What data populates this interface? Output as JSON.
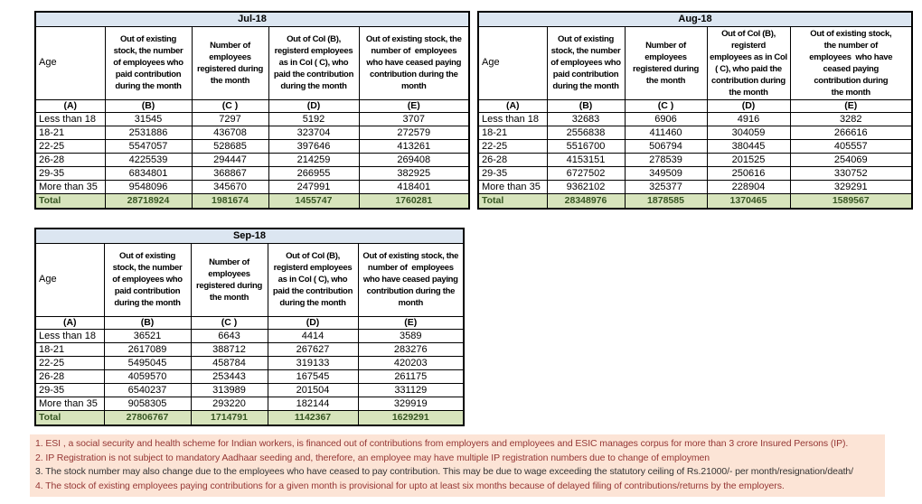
{
  "colors": {
    "table_border": "#000000",
    "month_header_bg": "#dce6f1",
    "total_row_bg": "#d7e4bc",
    "total_text": "#375623",
    "footnote_bg": "#fce4d6",
    "footnote_text_maroon": "#953735",
    "footnote_text_dark": "#333333"
  },
  "months": [
    {
      "title": "Jul-18",
      "headers": {
        "age": "Age",
        "b": "Out of existing\nstock, the number\nof employees who\npaid contribution\nduring the month",
        "c": "Number of\nemployees\nregistered during\nthe month",
        "d": "Out of Col (B),\nregisterd employees\nas in Col ( C), who\npaid the contribution\nduring the month",
        "e": "Out of existing stock, the\nnumber of  employees\nwho have ceased paying\ncontribution during the\nmonth"
      },
      "letters": [
        "(A)",
        "(B)",
        "(C )",
        "(D)",
        "(E)"
      ],
      "rows": [
        {
          "age": "Less than 18",
          "b": "31545",
          "c": "7297",
          "d": "5192",
          "e": "3707"
        },
        {
          "age": "18-21",
          "b": "2531886",
          "c": "436708",
          "d": "323704",
          "e": "272579"
        },
        {
          "age": "22-25",
          "b": "5547057",
          "c": "528685",
          "d": "397646",
          "e": "413261"
        },
        {
          "age": "26-28",
          "b": "4225539",
          "c": "294447",
          "d": "214259",
          "e": "269408"
        },
        {
          "age": "29-35",
          "b": "6834801",
          "c": "368867",
          "d": "266955",
          "e": "382925"
        },
        {
          "age": "More than 35",
          "b": "9548096",
          "c": "345670",
          "d": "247991",
          "e": "418401"
        }
      ],
      "total": {
        "label": "Total",
        "b": "28718924",
        "c": "1981674",
        "d": "1455747",
        "e": "1760281"
      }
    },
    {
      "title": "Aug-18",
      "headers": {
        "age": "Age",
        "b": "Out of existing\nstock, the number\nof employees who\npaid contribution\nduring the month",
        "c": "Number of\nemployees\nregistered during\nthe month",
        "d": "Out of Col (B),\nregisterd\nemployees as in Col\n( C), who paid the\ncontribution during\nthe month",
        "e": "Out of existing stock,\nthe number of\nemployees  who have\nceased paying\ncontribution during\nthe month"
      },
      "letters": [
        "(A)",
        "(B)",
        "(C )",
        "(D)",
        "(E)"
      ],
      "rows": [
        {
          "age": "Less than 18",
          "b": "32683",
          "c": "6906",
          "d": "4916",
          "e": "3282"
        },
        {
          "age": "18-21",
          "b": "2556838",
          "c": "411460",
          "d": "304059",
          "e": "266616"
        },
        {
          "age": "22-25",
          "b": "5516700",
          "c": "506794",
          "d": "380445",
          "e": "405557"
        },
        {
          "age": "26-28",
          "b": "4153151",
          "c": "278539",
          "d": "201525",
          "e": "254069"
        },
        {
          "age": "29-35",
          "b": "6727502",
          "c": "349509",
          "d": "250616",
          "e": "330752"
        },
        {
          "age": "More than 35",
          "b": "9362102",
          "c": "325377",
          "d": "228904",
          "e": "329291"
        }
      ],
      "total": {
        "label": "Total",
        "b": "28348976",
        "c": "1878585",
        "d": "1370465",
        "e": "1589567"
      }
    },
    {
      "title": "Sep-18",
      "headers": {
        "age": "Age",
        "b": "Out of existing\nstock, the number\nof employees who\npaid contribution\nduring the month",
        "c": "Number of\nemployees\nregistered during\nthe month",
        "d": "Out of Col (B),\nregisterd employees\nas in Col ( C), who\npaid the contribution\nduring the month",
        "e": "Out of existing stock, the\nnumber of  employees\nwho have ceased paying\ncontribution during the\nmonth"
      },
      "letters": [
        "(A)",
        "(B)",
        "(C )",
        "(D)",
        "(E)"
      ],
      "rows": [
        {
          "age": "Less than 18",
          "b": "36521",
          "c": "6643",
          "d": "4414",
          "e": "3589"
        },
        {
          "age": "18-21",
          "b": "2617089",
          "c": "388712",
          "d": "267627",
          "e": "283276"
        },
        {
          "age": "22-25",
          "b": "5495045",
          "c": "458784",
          "d": "319133",
          "e": "420203"
        },
        {
          "age": "26-28",
          "b": "4059570",
          "c": "253443",
          "d": "167545",
          "e": "261175"
        },
        {
          "age": "29-35",
          "b": "6540237",
          "c": "313989",
          "d": "201504",
          "e": "331129"
        },
        {
          "age": "More than 35",
          "b": "9058305",
          "c": "293220",
          "d": "182144",
          "e": "329919"
        }
      ],
      "total": {
        "label": "Total",
        "b": "27806767",
        "c": "1714791",
        "d": "1142367",
        "e": "1629291"
      }
    }
  ],
  "footnotes": [
    {
      "text": "1. ESI , a social security and health scheme for Indian workers, is financed out of contributions from employers and employees and ESIC manages corpus for more than 3 crore Insured Persons (IP)."
    },
    {
      "text": "2. IP Registration is not subject to mandatory Aadhaar seeding and, therefore, an employee may have multiple IP registration numbers due to change of employmen"
    },
    {
      "text": "3. The stock number may also change due to the employees who have ceased to pay contribution. This may  be due to wage exceeding the statutory ceiling of  Rs.21000/- per month/resignation/death/"
    },
    {
      "text": "4. The stock of existing employees paying contributions for a given month is provisional for upto at least six months because of delayed filing of contributions/returns by the employers."
    }
  ]
}
